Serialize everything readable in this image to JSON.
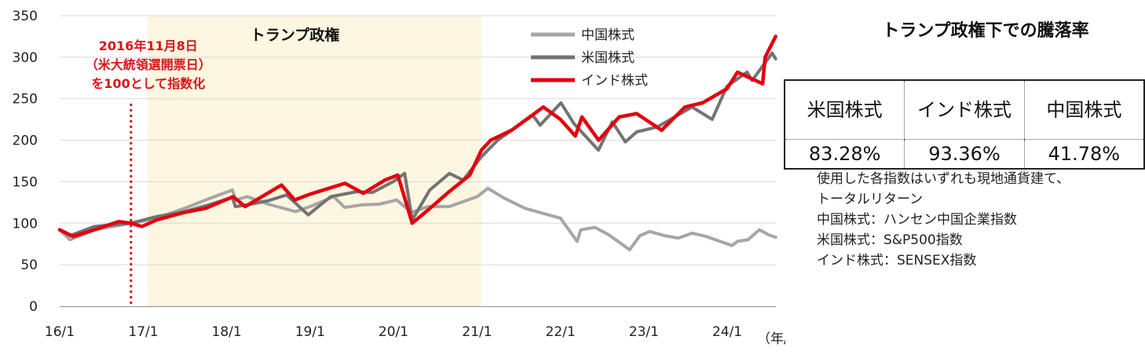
{
  "chart_data": {
    "type": "line",
    "x_axis": {
      "ticks": [
        "16/1",
        "17/1",
        "18/1",
        "19/1",
        "20/1",
        "21/1",
        "22/1",
        "23/1",
        "24/1"
      ],
      "unit": "（年/月）"
    },
    "y_axis": {
      "ylim": [
        0,
        350
      ],
      "ticks": [
        "0",
        "50",
        "100",
        "150",
        "200",
        "250",
        "300",
        "350"
      ]
    },
    "grid": "horizontal",
    "legend_position": "top-right",
    "shaded_period": {
      "label": "トランプ政権",
      "start": "2017-01-20",
      "end": "2021-01-20",
      "color": "#fdf6e0"
    },
    "reference_line": {
      "date": "2016-11-08",
      "style": "dotted",
      "color": "#d7141a"
    },
    "annotation": [
      "2016年11月8日",
      "（米大統領選開票日）",
      "を100として指数化"
    ],
    "series": [
      {
        "name": "中国株式",
        "color": "#a6a6a6",
        "x": [
          "2016-01-01",
          "2016-02-15",
          "2016-06-01",
          "2016-11-08",
          "2017-03-01",
          "2017-07-01",
          "2017-10-01",
          "2018-01-26",
          "2018-02-10",
          "2018-04-01",
          "2018-07-01",
          "2018-10-29",
          "2019-01-01",
          "2019-04-15",
          "2019-06-01",
          "2019-08-15",
          "2019-11-01",
          "2020-01-15",
          "2020-03-20",
          "2020-06-01",
          "2020-09-01",
          "2021-01-01",
          "2021-02-17",
          "2021-05-01",
          "2021-07-30",
          "2021-10-01",
          "2022-01-01",
          "2022-03-15",
          "2022-03-31",
          "2022-06-01",
          "2022-08-01",
          "2022-10-31",
          "2022-12-15",
          "2023-01-27",
          "2023-04-01",
          "2023-06-01",
          "2023-08-01",
          "2023-10-01",
          "2024-01-22",
          "2024-02-15",
          "2024-04-01",
          "2024-05-20",
          "2024-07-01",
          "2024-07-31"
        ],
        "values": [
          92,
          80,
          92,
          100,
          106,
          118,
          128,
          140,
          128,
          132,
          123,
          114,
          120,
          132,
          119,
          122,
          123,
          128,
          113,
          120,
          120,
          132,
          142,
          130,
          118,
          113,
          106,
          78,
          92,
          95,
          86,
          68,
          85,
          90,
          85,
          82,
          88,
          84,
          73,
          78,
          80,
          92,
          86,
          83
        ]
      },
      {
        "name": "米国株式",
        "color": "#737373",
        "x": [
          "2016-01-01",
          "2016-02-15",
          "2016-06-01",
          "2016-11-08",
          "2017-03-01",
          "2017-07-01",
          "2017-10-01",
          "2018-01-26",
          "2018-02-08",
          "2018-04-01",
          "2018-07-01",
          "2018-09-20",
          "2018-12-24",
          "2019-04-01",
          "2019-07-25",
          "2019-10-01",
          "2019-12-31",
          "2020-02-19",
          "2020-03-23",
          "2020-06-08",
          "2020-09-02",
          "2020-11-01",
          "2021-01-20",
          "2021-04-01",
          "2021-09-02",
          "2021-10-04",
          "2022-01-03",
          "2022-03-01",
          "2022-06-16",
          "2022-08-16",
          "2022-10-12",
          "2022-12-01",
          "2023-03-01",
          "2023-07-31",
          "2023-10-27",
          "2023-12-31",
          "2024-03-28",
          "2024-04-19",
          "2024-07-16",
          "2024-07-31"
        ],
        "values": [
          92,
          85,
          96,
          100,
          108,
          114,
          121,
          131,
          120,
          122,
          127,
          134,
          110,
          132,
          138,
          137,
          150,
          160,
          104,
          140,
          160,
          152,
          180,
          200,
          230,
          218,
          245,
          220,
          188,
          222,
          198,
          210,
          216,
          240,
          225,
          265,
          282,
          272,
          305,
          298
        ]
      },
      {
        "name": "インド株式",
        "color": "#e3000f",
        "x": [
          "2016-01-01",
          "2016-02-29",
          "2016-06-01",
          "2016-09-15",
          "2016-11-08",
          "2016-12-26",
          "2017-03-01",
          "2017-07-01",
          "2017-10-01",
          "2018-01-29",
          "2018-03-23",
          "2018-08-29",
          "2018-10-26",
          "2019-01-01",
          "2019-06-03",
          "2019-08-22",
          "2019-11-25",
          "2020-01-20",
          "2020-03-23",
          "2020-06-01",
          "2020-09-01",
          "2020-11-30",
          "2021-01-20",
          "2021-03-01",
          "2021-06-01",
          "2021-10-18",
          "2022-01-01",
          "2022-03-07",
          "2022-04-05",
          "2022-06-17",
          "2022-09-15",
          "2022-12-01",
          "2023-03-20",
          "2023-06-30",
          "2023-09-15",
          "2023-12-31",
          "2024-02-15",
          "2024-06-04",
          "2024-06-15",
          "2024-07-31"
        ],
        "values": [
          92,
          84,
          92,
          102,
          100,
          96,
          104,
          113,
          118,
          132,
          120,
          146,
          128,
          135,
          148,
          136,
          152,
          158,
          100,
          116,
          138,
          158,
          188,
          200,
          212,
          240,
          225,
          205,
          228,
          200,
          228,
          232,
          212,
          240,
          245,
          262,
          282,
          268,
          300,
          325
        ]
      }
    ]
  },
  "side_panel": {
    "title": "トランプ政権下での騰落率",
    "headers": [
      "米国株式",
      "インド株式",
      "中国株式"
    ],
    "values": [
      "83.28%",
      "93.36%",
      "41.78%"
    ]
  },
  "notes": [
    "使用した各指数はいずれも現地通貨建て、",
    "トータルリターン",
    "中国株式：ハンセン中国企業指数",
    "米国株式：S&P500指数",
    "インド株式：SENSEX指数"
  ]
}
